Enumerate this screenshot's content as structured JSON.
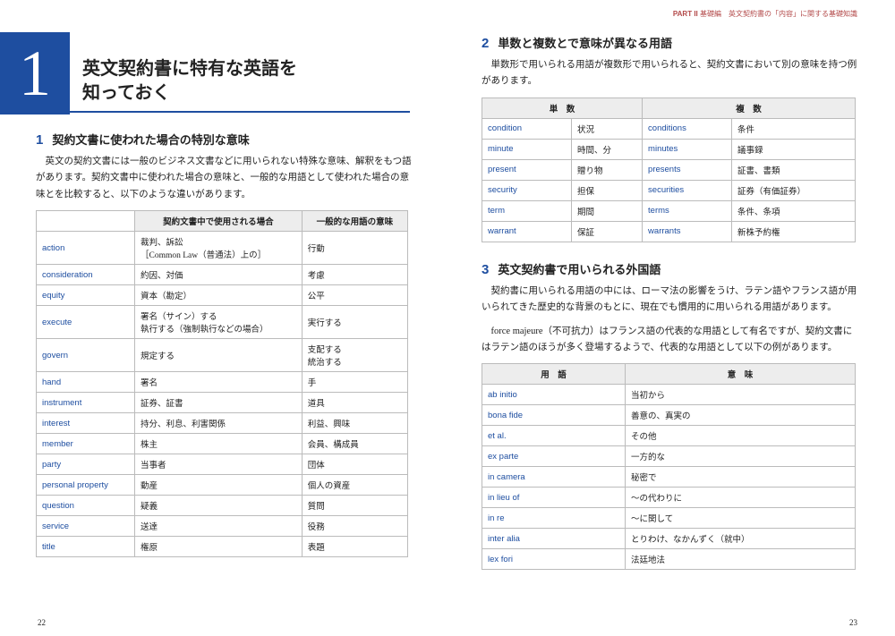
{
  "colors": {
    "accent": "#1e4ea0",
    "header_bg": "#ededed",
    "border": "#bbbbbb",
    "running": "#b34a4a"
  },
  "running_head": {
    "part": "PART II",
    "text": "基礎編　英文契約書の「内容」に関する基礎知識"
  },
  "chapter": {
    "num": "1",
    "title_line1": "英文契約書に特有な英語を",
    "title_line2": "知っておく"
  },
  "page_left_no": "22",
  "page_right_no": "23",
  "sec1": {
    "num": "1",
    "title": "契約文書に使われた場合の特別な意味",
    "para": "英文の契約文書には一般のビジネス文書などに用いられない特殊な意味、解釈をもつ語があります。契約文書中に使われた場合の意味と、一般的な用語として使われた場合の意味とを比較すると、以下のような違いがあります。",
    "cols": [
      "",
      "契約文書中で使用される場合",
      "一般的な用語の意味"
    ],
    "rows": [
      [
        "action",
        "裁判、訴訟\n［Common Law（普通法）上の］",
        "行動"
      ],
      [
        "consideration",
        "約因、対価",
        "考慮"
      ],
      [
        "equity",
        "資本（勘定）",
        "公平"
      ],
      [
        "execute",
        "署名（サイン）する\n執行する（強制執行などの場合）",
        "実行する"
      ],
      [
        "govern",
        "規定する",
        "支配する\n統治する"
      ],
      [
        "hand",
        "署名",
        "手"
      ],
      [
        "instrument",
        "証券、証書",
        "道具"
      ],
      [
        "interest",
        "持分、利息、利害関係",
        "利益、興味"
      ],
      [
        "member",
        "株主",
        "会員、構成員"
      ],
      [
        "party",
        "当事者",
        "団体"
      ],
      [
        "personal property",
        "動産",
        "個人の資産"
      ],
      [
        "question",
        "疑義",
        "質問"
      ],
      [
        "service",
        "送達",
        "役務"
      ],
      [
        "title",
        "権原",
        "表題"
      ]
    ]
  },
  "sec2": {
    "num": "2",
    "title": "単数と複数とで意味が異なる用語",
    "para": "単数形で用いられる用語が複数形で用いられると、契約文書において別の意味を持つ例があります。",
    "cols": [
      "単　数",
      "",
      "複　数",
      ""
    ],
    "rows": [
      [
        "condition",
        "状況",
        "conditions",
        "条件"
      ],
      [
        "minute",
        "時間、分",
        "minutes",
        "議事録"
      ],
      [
        "present",
        "贈り物",
        "presents",
        "証書、書類"
      ],
      [
        "security",
        "担保",
        "securities",
        "証券（有価証券）"
      ],
      [
        "term",
        "期間",
        "terms",
        "条件、条項"
      ],
      [
        "warrant",
        "保証",
        "warrants",
        "新株予約権"
      ]
    ]
  },
  "sec3": {
    "num": "3",
    "title": "英文契約書で用いられる外国語",
    "para1": "契約書に用いられる用語の中には、ローマ法の影響をうけ、ラテン語やフランス語が用いられてきた歴史的な背景のもとに、現在でも慣用的に用いられる用語があります。",
    "para2": "force majeure（不可抗力）はフランス語の代表的な用語として有名ですが、契約文書にはラテン語のほうが多く登場するようで、代表的な用語として以下の例があります。",
    "cols": [
      "用　語",
      "意　味"
    ],
    "rows": [
      [
        "ab initio",
        "当初から"
      ],
      [
        "bona fide",
        "善意の、真実の"
      ],
      [
        "et al.",
        "その他"
      ],
      [
        "ex parte",
        "一方的な"
      ],
      [
        "in camera",
        "秘密で"
      ],
      [
        "in lieu of",
        "～の代わりに"
      ],
      [
        "in re",
        "～に関して"
      ],
      [
        "inter alia",
        "とりわけ、なかんずく（就中）"
      ],
      [
        "lex fori",
        "法廷地法"
      ]
    ]
  }
}
